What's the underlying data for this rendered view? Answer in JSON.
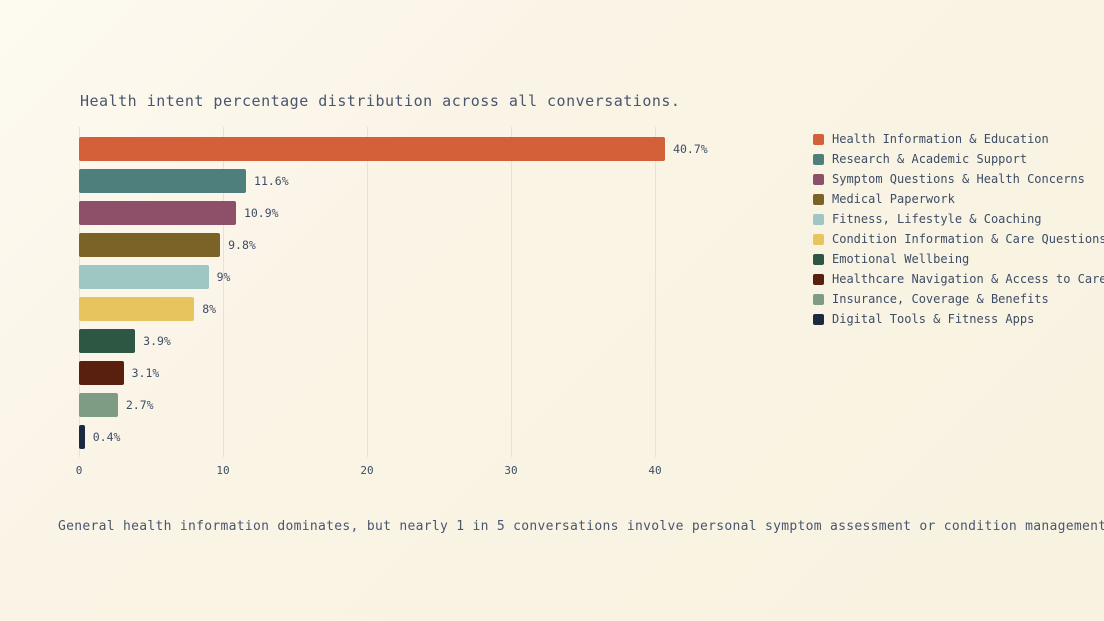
{
  "caption": "General health information dominates, but nearly 1 in 5 conversations involve personal symptom assessment or condition management.",
  "chart_data": {
    "type": "bar",
    "orientation": "horizontal",
    "title": "Health intent percentage distribution across all conversations.",
    "xlabel": "",
    "ylabel": "",
    "xlim": [
      0,
      43
    ],
    "x_ticks": [
      0,
      10,
      20,
      30,
      40
    ],
    "grid": true,
    "legend_position": "right",
    "categories": [
      "Health Information & Education",
      "Research & Academic Support",
      "Symptom Questions & Health Concerns",
      "Medical Paperwork",
      "Fitness, Lifestyle & Coaching",
      "Condition Information & Care Questions",
      "Emotional Wellbeing",
      "Healthcare Navigation & Access to Care",
      "Insurance, Coverage & Benefits",
      "Digital Tools & Fitness Apps"
    ],
    "values": [
      40.7,
      11.6,
      10.9,
      9.8,
      9,
      8,
      3.9,
      3.1,
      2.7,
      0.4
    ],
    "value_labels": [
      "40.7%",
      "11.6%",
      "10.9%",
      "9.8%",
      "9%",
      "8%",
      "3.9%",
      "3.1%",
      "2.7%",
      "0.4%"
    ],
    "colors": [
      "#d4603a",
      "#4e7f7d",
      "#8e5069",
      "#7b6226",
      "#9ec7c3",
      "#e7c45e",
      "#2d5742",
      "#59200f",
      "#7e9c84",
      "#1d2940"
    ]
  }
}
